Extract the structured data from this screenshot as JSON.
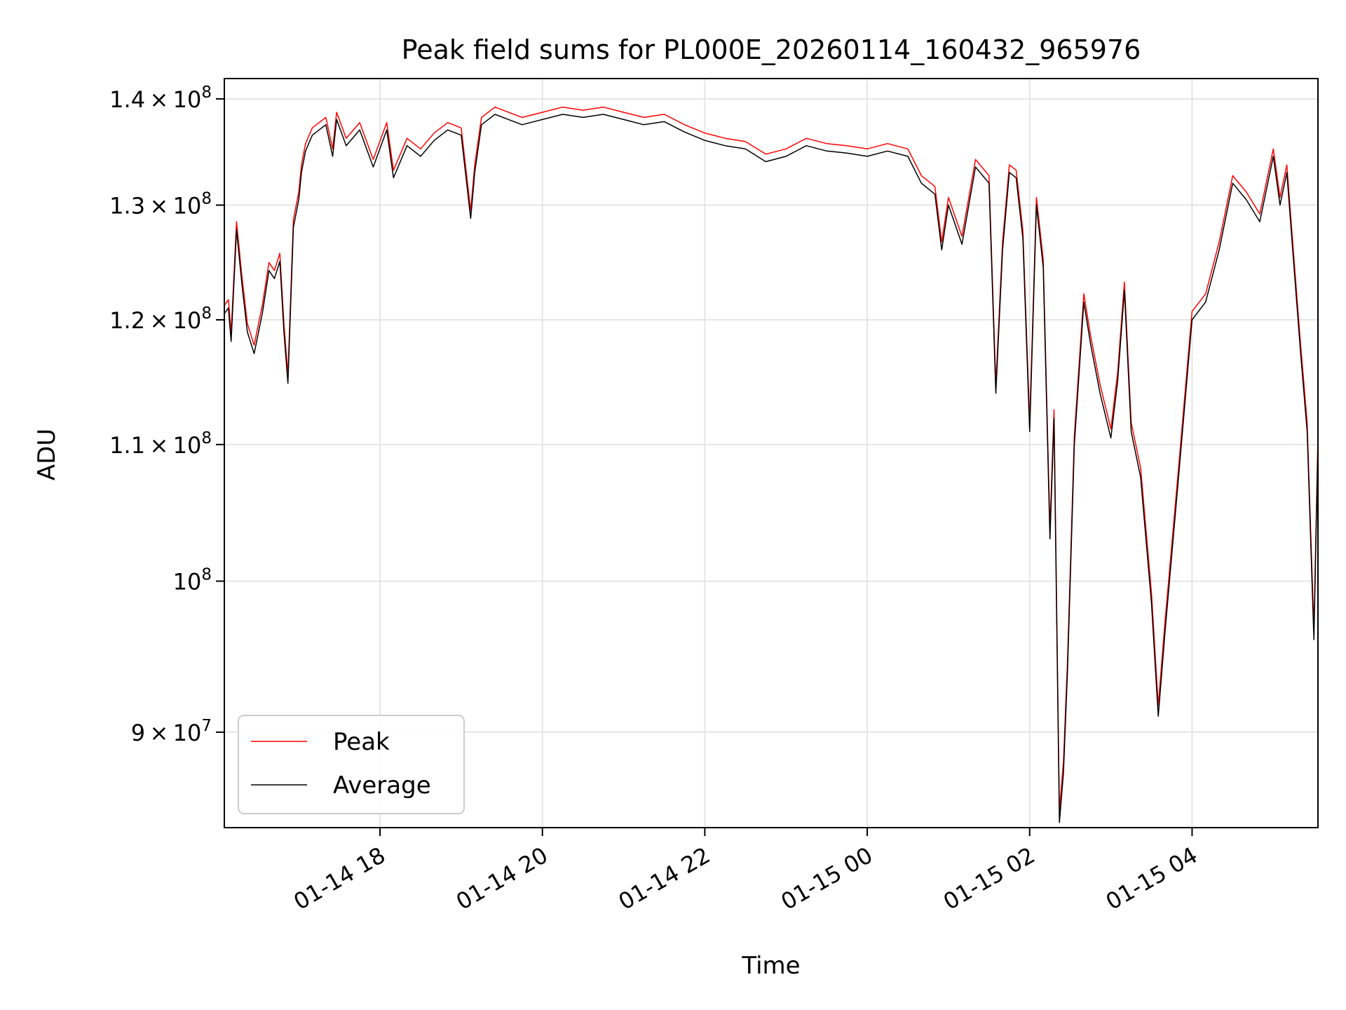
{
  "chart_data": {
    "type": "line",
    "title": "Peak field sums for PL000E_20260114_160432_965976",
    "xlabel": "Time",
    "ylabel": "ADU",
    "x_start": "2026-01-14 16:05",
    "x_end": "2026-01-15 05:33",
    "x_tick_labels": [
      "01-14 18",
      "01-14 20",
      "01-14 22",
      "01-15 00",
      "01-15 02",
      "01-15 04"
    ],
    "x_ticks": [
      "2026-01-14 18:00",
      "2026-01-14 20:00",
      "2026-01-14 22:00",
      "2026-01-15 00:00",
      "2026-01-15 02:00",
      "2026-01-15 04:00"
    ],
    "y_scale": "log",
    "ylim": [
      84200000,
      142000000
    ],
    "y_ticks": [
      90000000,
      100000000,
      110000000,
      120000000,
      130000000,
      140000000
    ],
    "y_tick_labels": [
      {
        "mantissa": "9",
        "exponent": "7"
      },
      {
        "mantissa": "",
        "exponent": "8"
      },
      {
        "mantissa": "1.1",
        "exponent": "8"
      },
      {
        "mantissa": "1.2",
        "exponent": "8"
      },
      {
        "mantissa": "1.3",
        "exponent": "8"
      },
      {
        "mantissa": "1.4",
        "exponent": "8"
      }
    ],
    "grid": true,
    "legend_position": "lower-left",
    "series": [
      {
        "name": "Peak",
        "color": "#ff0000"
      },
      {
        "name": "Average",
        "color": "#000000"
      }
    ],
    "x": [
      "2026-01-14 16:05",
      "2026-01-14 16:08",
      "2026-01-14 16:10",
      "2026-01-14 16:14",
      "2026-01-14 16:18",
      "2026-01-14 16:22",
      "2026-01-14 16:27",
      "2026-01-14 16:33",
      "2026-01-14 16:38",
      "2026-01-14 16:42",
      "2026-01-14 16:46",
      "2026-01-14 16:49",
      "2026-01-14 16:52",
      "2026-01-14 16:56",
      "2026-01-14 17:00",
      "2026-01-14 17:02",
      "2026-01-14 17:05",
      "2026-01-14 17:10",
      "2026-01-14 17:20",
      "2026-01-14 17:25",
      "2026-01-14 17:28",
      "2026-01-14 17:35",
      "2026-01-14 17:45",
      "2026-01-14 17:55",
      "2026-01-14 18:05",
      "2026-01-14 18:10",
      "2026-01-14 18:20",
      "2026-01-14 18:30",
      "2026-01-14 18:40",
      "2026-01-14 18:50",
      "2026-01-14 19:00",
      "2026-01-14 19:07",
      "2026-01-14 19:10",
      "2026-01-14 19:15",
      "2026-01-14 19:25",
      "2026-01-14 19:35",
      "2026-01-14 19:45",
      "2026-01-14 20:00",
      "2026-01-14 20:15",
      "2026-01-14 20:30",
      "2026-01-14 20:45",
      "2026-01-14 21:00",
      "2026-01-14 21:15",
      "2026-01-14 21:30",
      "2026-01-14 21:45",
      "2026-01-14 22:00",
      "2026-01-14 22:15",
      "2026-01-14 22:30",
      "2026-01-14 22:45",
      "2026-01-14 23:00",
      "2026-01-14 23:15",
      "2026-01-14 23:30",
      "2026-01-14 23:45",
      "2026-01-15 00:00",
      "2026-01-15 00:15",
      "2026-01-15 00:30",
      "2026-01-15 00:40",
      "2026-01-15 00:50",
      "2026-01-15 00:55",
      "2026-01-15 01:00",
      "2026-01-15 01:10",
      "2026-01-15 01:20",
      "2026-01-15 01:30",
      "2026-01-15 01:35",
      "2026-01-15 01:40",
      "2026-01-15 01:45",
      "2026-01-15 01:50",
      "2026-01-15 01:55",
      "2026-01-15 02:00",
      "2026-01-15 02:05",
      "2026-01-15 02:10",
      "2026-01-15 02:15",
      "2026-01-15 02:18",
      "2026-01-15 02:22",
      "2026-01-15 02:25",
      "2026-01-15 02:28",
      "2026-01-15 02:33",
      "2026-01-15 02:40",
      "2026-01-15 02:45",
      "2026-01-15 02:52",
      "2026-01-15 03:00",
      "2026-01-15 03:05",
      "2026-01-15 03:10",
      "2026-01-15 03:15",
      "2026-01-15 03:22",
      "2026-01-15 03:30",
      "2026-01-15 03:35",
      "2026-01-15 03:40",
      "2026-01-15 03:50",
      "2026-01-15 04:00",
      "2026-01-15 04:10",
      "2026-01-15 04:20",
      "2026-01-15 04:30",
      "2026-01-15 04:40",
      "2026-01-15 04:50",
      "2026-01-15 05:00",
      "2026-01-15 05:05",
      "2026-01-15 05:10",
      "2026-01-15 05:15",
      "2026-01-15 05:20",
      "2026-01-15 05:25",
      "2026-01-15 05:30",
      "2026-01-15 05:33"
    ],
    "avg": [
      120500000,
      121000000,
      118200000,
      127800000,
      123000000,
      119000000,
      117200000,
      120500000,
      124200000,
      123500000,
      125000000,
      119000000,
      114800000,
      128000000,
      130500000,
      133000000,
      135000000,
      136500000,
      137500000,
      134500000,
      138000000,
      135500000,
      137000000,
      133500000,
      137000000,
      132500000,
      135500000,
      134500000,
      136000000,
      137000000,
      136500000,
      128800000,
      133000000,
      137500000,
      138500000,
      138000000,
      137500000,
      138000000,
      138500000,
      138200000,
      138500000,
      138000000,
      137500000,
      137800000,
      136800000,
      136000000,
      135500000,
      135200000,
      134000000,
      134500000,
      135500000,
      135000000,
      134800000,
      134500000,
      135000000,
      134500000,
      132000000,
      131000000,
      126000000,
      130000000,
      126500000,
      133500000,
      132000000,
      114000000,
      126000000,
      133000000,
      132500000,
      127000000,
      111000000,
      130000000,
      124500000,
      103000000,
      112000000,
      84500000,
      87500000,
      94000000,
      110000000,
      121500000,
      118000000,
      114000000,
      110500000,
      115000000,
      122500000,
      111000000,
      107500000,
      98500000,
      91000000,
      96500000,
      107500000,
      120000000,
      121500000,
      126000000,
      132000000,
      130500000,
      128500000,
      134500000,
      130000000,
      133000000,
      125000000,
      117500000,
      111000000,
      96000000,
      110000000
    ],
    "peak": [
      121200000,
      121700000,
      118900000,
      128500000,
      123700000,
      119700000,
      117900000,
      121200000,
      124900000,
      124200000,
      125700000,
      119700000,
      115500000,
      128700000,
      131200000,
      133700000,
      135700000,
      137200000,
      138200000,
      135200000,
      138700000,
      136200000,
      137700000,
      134200000,
      137700000,
      133200000,
      136200000,
      135200000,
      136700000,
      137700000,
      137200000,
      129500000,
      133700000,
      138200000,
      139200000,
      138700000,
      138200000,
      138700000,
      139200000,
      138900000,
      139200000,
      138700000,
      138200000,
      138500000,
      137500000,
      136700000,
      136200000,
      135900000,
      134700000,
      135200000,
      136200000,
      135700000,
      135500000,
      135200000,
      135700000,
      135200000,
      132700000,
      131700000,
      126700000,
      130700000,
      127200000,
      134200000,
      132700000,
      114700000,
      126700000,
      133700000,
      133200000,
      127700000,
      111700000,
      130700000,
      125200000,
      103700000,
      112700000,
      85200000,
      88200000,
      94700000,
      110700000,
      122200000,
      118700000,
      114700000,
      111200000,
      115700000,
      123200000,
      111700000,
      108200000,
      99200000,
      91700000,
      97200000,
      108200000,
      120700000,
      122200000,
      126700000,
      132700000,
      131200000,
      129200000,
      135200000,
      130700000,
      133700000,
      125700000,
      118200000,
      111700000,
      96700000,
      110700000
    ]
  }
}
